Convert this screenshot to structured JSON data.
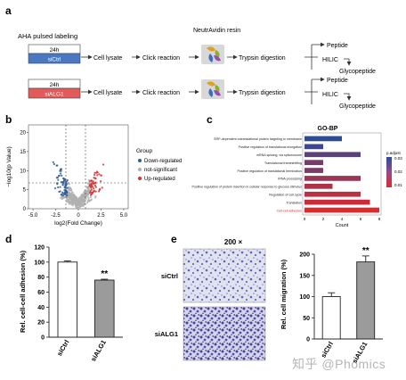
{
  "panel_a": {
    "letter": "a",
    "title": "AHA pulsed labeling",
    "resin": "NeutrAvidin resin",
    "rows": [
      {
        "duration": "24h",
        "condition": "siCtrl",
        "lysate": "Cell lysate",
        "click": "Click reaction",
        "trypsin": "Trypsin digestion",
        "peptide": "Peptide",
        "hilic": "HILIC",
        "glyco": "Glycopeptide"
      },
      {
        "duration": "24h",
        "condition": "siALG1",
        "lysate": "Cell lysate",
        "click": "Click reaction",
        "trypsin": "Trypsin digestion",
        "peptide": "Peptide",
        "hilic": "HILIC",
        "glyco": "Glycopeptide"
      }
    ],
    "colors": {
      "ctrl": "#4a78c2",
      "alg": "#e25a5a"
    }
  },
  "panel_b": {
    "letter": "b",
    "ylabel": "−log10(p Value)",
    "xlabel": "log2(Fold Change)",
    "legend_title": "Group",
    "legend": [
      {
        "name": "Down-regulated",
        "color": "#2f5d9a"
      },
      {
        "name": "not-significant",
        "color": "#b0b0b0"
      },
      {
        "name": "Up-regulated",
        "color": "#d73030"
      }
    ],
    "xticks": [
      "-5.0",
      "-2.5",
      "0",
      "2.5",
      "5.0"
    ],
    "yticks": [
      "0",
      "5",
      "10",
      "15",
      "20"
    ]
  },
  "panel_c": {
    "letter": "c",
    "title": "GO-BP",
    "xlabel": "Count",
    "xticks": [
      "0",
      "2",
      "4",
      "6",
      "8"
    ],
    "legend_title": "p.adjust",
    "legend_ticks": [
      "0.03",
      "0.02",
      "0.01"
    ],
    "terms": [
      {
        "label": "SRP-dependent cotranslational protein targeting to membrane",
        "count": 4.0,
        "padj": 0.034
      },
      {
        "label": "Positive regulation of translational elongation",
        "count": 2.0,
        "padj": 0.031
      },
      {
        "label": "mRNA splicing, via spliceosome",
        "count": 6.0,
        "padj": 0.026
      },
      {
        "label": "Translational frameshifting",
        "count": 2.0,
        "padj": 0.022
      },
      {
        "label": "Positive regulation of translational termination",
        "count": 2.0,
        "padj": 0.021
      },
      {
        "label": "rRNA processing",
        "count": 6.0,
        "padj": 0.016
      },
      {
        "label": "Positive regulation of protein insertion in cellular response to glucose stimulus",
        "count": 3.0,
        "padj": 0.013
      },
      {
        "label": "Regulation of cell cycle",
        "count": 6.0,
        "padj": 0.011
      },
      {
        "label": "Translation",
        "count": 7.0,
        "padj": 0.009
      },
      {
        "label": "Cell-cell adhesion",
        "count": 8.0,
        "padj": 0.005
      }
    ]
  },
  "panel_d": {
    "letter": "d",
    "ylabel": "Rel. cell-cell adhesion (%)",
    "yticks": [
      "0",
      "20",
      "40",
      "60",
      "80",
      "100",
      "120"
    ],
    "significance": "**",
    "chart_data": {
      "type": "bar",
      "categories": [
        "siCtrl",
        "siALG1"
      ],
      "values": [
        100,
        76
      ],
      "errors": [
        1.5,
        1.2
      ],
      "ylim": [
        0,
        120
      ]
    }
  },
  "panel_e": {
    "letter": "e",
    "magnification": "200 ×",
    "image_labels": [
      "siCtrl",
      "siALG1"
    ],
    "ylabel": "Rel. cell migration (%)",
    "yticks": [
      "0",
      "50",
      "100",
      "150",
      "200"
    ],
    "significance": "**",
    "chart_data": {
      "type": "bar",
      "categories": [
        "siCtrl",
        "siALG1"
      ],
      "values": [
        100,
        182
      ],
      "errors": [
        9,
        14
      ],
      "ylim": [
        0,
        200
      ]
    }
  },
  "watermark": "知乎 @Phomics"
}
